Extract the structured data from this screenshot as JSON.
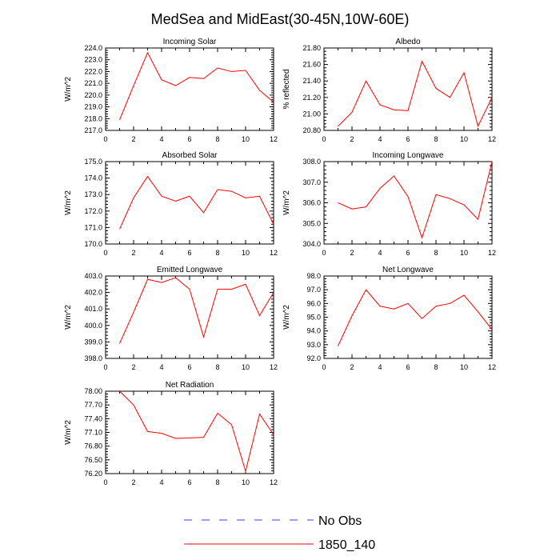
{
  "figure": {
    "title": "MedSea and MidEast(30-45N,10W-60E)"
  },
  "legend": {
    "entries": [
      {
        "label": "No Obs",
        "color": "#3c3cff",
        "dashed": true
      },
      {
        "label": "1850_140",
        "color": "#ff0000",
        "dashed": false
      }
    ]
  },
  "chart_data": [
    {
      "type": "line",
      "title": "Incoming Solar",
      "ylabel": "W/m^2",
      "x": [
        1,
        2,
        3,
        4,
        5,
        6,
        7,
        8,
        9,
        10,
        11,
        12
      ],
      "values": [
        217.9,
        220.8,
        223.6,
        221.3,
        220.8,
        221.5,
        221.4,
        222.3,
        222.0,
        222.1,
        220.4,
        219.4
      ],
      "xlim": [
        0,
        12
      ],
      "ylim": [
        217.0,
        224.0
      ],
      "xticks": [
        0,
        2,
        4,
        6,
        8,
        10,
        12
      ],
      "yticks": [
        217.0,
        218.0,
        219.0,
        220.0,
        221.0,
        222.0,
        223.0,
        224.0
      ],
      "ytick_labels": [
        "217.0",
        "218.0",
        "219.0",
        "220.0",
        "221.0",
        "222.0",
        "223.0",
        "224.0"
      ],
      "color": "#ff0000"
    },
    {
      "type": "line",
      "title": "Albedo",
      "ylabel": "% reflected",
      "x": [
        1,
        2,
        3,
        4,
        5,
        6,
        7,
        8,
        9,
        10,
        11,
        12
      ],
      "values": [
        20.85,
        21.02,
        21.4,
        21.11,
        21.05,
        21.04,
        21.64,
        21.31,
        21.2,
        21.5,
        20.85,
        21.2
      ],
      "xlim": [
        0,
        12
      ],
      "ylim": [
        20.8,
        21.8
      ],
      "xticks": [
        0,
        2,
        4,
        6,
        8,
        10,
        12
      ],
      "yticks": [
        20.8,
        21.0,
        21.2,
        21.4,
        21.6,
        21.8
      ],
      "ytick_labels": [
        "20.80",
        "21.00",
        "21.20",
        "21.40",
        "21.60",
        "21.80"
      ],
      "color": "#ff0000"
    },
    {
      "type": "line",
      "title": "Absorbed Solar",
      "ylabel": "W/m^2",
      "x": [
        1,
        2,
        3,
        4,
        5,
        6,
        7,
        8,
        9,
        10,
        11,
        12
      ],
      "values": [
        170.9,
        172.8,
        174.1,
        172.9,
        172.6,
        172.9,
        171.9,
        173.3,
        173.2,
        172.8,
        172.9,
        171.2
      ],
      "xlim": [
        0,
        12
      ],
      "ylim": [
        170.0,
        175.0
      ],
      "xticks": [
        0,
        2,
        4,
        6,
        8,
        10,
        12
      ],
      "yticks": [
        170.0,
        171.0,
        172.0,
        173.0,
        174.0,
        175.0
      ],
      "ytick_labels": [
        "170.0",
        "171.0",
        "172.0",
        "173.0",
        "174.0",
        "175.0"
      ],
      "color": "#ff0000"
    },
    {
      "type": "line",
      "title": "Incoming Longwave",
      "ylabel": "W/m^2",
      "x": [
        1,
        2,
        3,
        4,
        5,
        6,
        7,
        8,
        9,
        10,
        11,
        12
      ],
      "values": [
        306.0,
        305.7,
        305.8,
        306.7,
        307.3,
        306.3,
        304.3,
        306.4,
        306.2,
        305.9,
        305.2,
        308.0
      ],
      "xlim": [
        0,
        12
      ],
      "ylim": [
        304.0,
        308.0
      ],
      "xticks": [
        0,
        2,
        4,
        6,
        8,
        10,
        12
      ],
      "yticks": [
        304.0,
        305.0,
        306.0,
        307.0,
        308.0
      ],
      "ytick_labels": [
        "304.0",
        "305.0",
        "306.0",
        "307.0",
        "308.0"
      ],
      "color": "#ff0000"
    },
    {
      "type": "line",
      "title": "Emitted Longwave",
      "ylabel": "W/m^2",
      "x": [
        1,
        2,
        3,
        4,
        5,
        6,
        7,
        8,
        9,
        10,
        11,
        12
      ],
      "values": [
        398.9,
        400.8,
        402.8,
        402.6,
        402.9,
        402.2,
        399.3,
        402.2,
        402.2,
        402.5,
        400.6,
        402.0
      ],
      "xlim": [
        0,
        12
      ],
      "ylim": [
        398.0,
        403.0
      ],
      "xticks": [
        0,
        2,
        4,
        6,
        8,
        10,
        12
      ],
      "yticks": [
        398.0,
        399.0,
        400.0,
        401.0,
        402.0,
        403.0
      ],
      "ytick_labels": [
        "398.0",
        "399.0",
        "400.0",
        "401.0",
        "402.0",
        "403.0"
      ],
      "color": "#ff0000"
    },
    {
      "type": "line",
      "title": "Net Longwave",
      "ylabel": "W/m^2",
      "x": [
        1,
        2,
        3,
        4,
        5,
        6,
        7,
        8,
        9,
        10,
        11,
        12
      ],
      "values": [
        92.9,
        95.1,
        97.0,
        95.8,
        95.6,
        96.0,
        94.9,
        95.8,
        96.0,
        96.6,
        95.4,
        94.1
      ],
      "xlim": [
        0,
        12
      ],
      "ylim": [
        92.0,
        98.0
      ],
      "xticks": [
        0,
        2,
        4,
        6,
        8,
        10,
        12
      ],
      "yticks": [
        92.0,
        93.0,
        94.0,
        95.0,
        96.0,
        97.0,
        98.0
      ],
      "ytick_labels": [
        "92.0",
        "93.0",
        "94.0",
        "95.0",
        "96.0",
        "97.0",
        "98.0"
      ],
      "color": "#ff0000"
    },
    {
      "type": "line",
      "title": "Net Radiation",
      "ylabel": "W/m^2",
      "x": [
        1,
        2,
        3,
        4,
        5,
        6,
        7,
        8,
        9,
        10,
        11,
        12
      ],
      "values": [
        78.0,
        77.7,
        77.12,
        77.08,
        76.97,
        76.98,
        76.99,
        77.52,
        77.27,
        76.25,
        77.5,
        77.05
      ],
      "xlim": [
        0,
        12
      ],
      "ylim": [
        76.2,
        78.0
      ],
      "xticks": [
        0,
        2,
        4,
        6,
        8,
        10,
        12
      ],
      "yticks": [
        76.2,
        76.5,
        76.8,
        77.1,
        77.4,
        77.7,
        78.0
      ],
      "ytick_labels": [
        "76.20",
        "76.50",
        "76.80",
        "77.10",
        "77.40",
        "77.70",
        "78.00"
      ],
      "color": "#ff0000"
    }
  ]
}
